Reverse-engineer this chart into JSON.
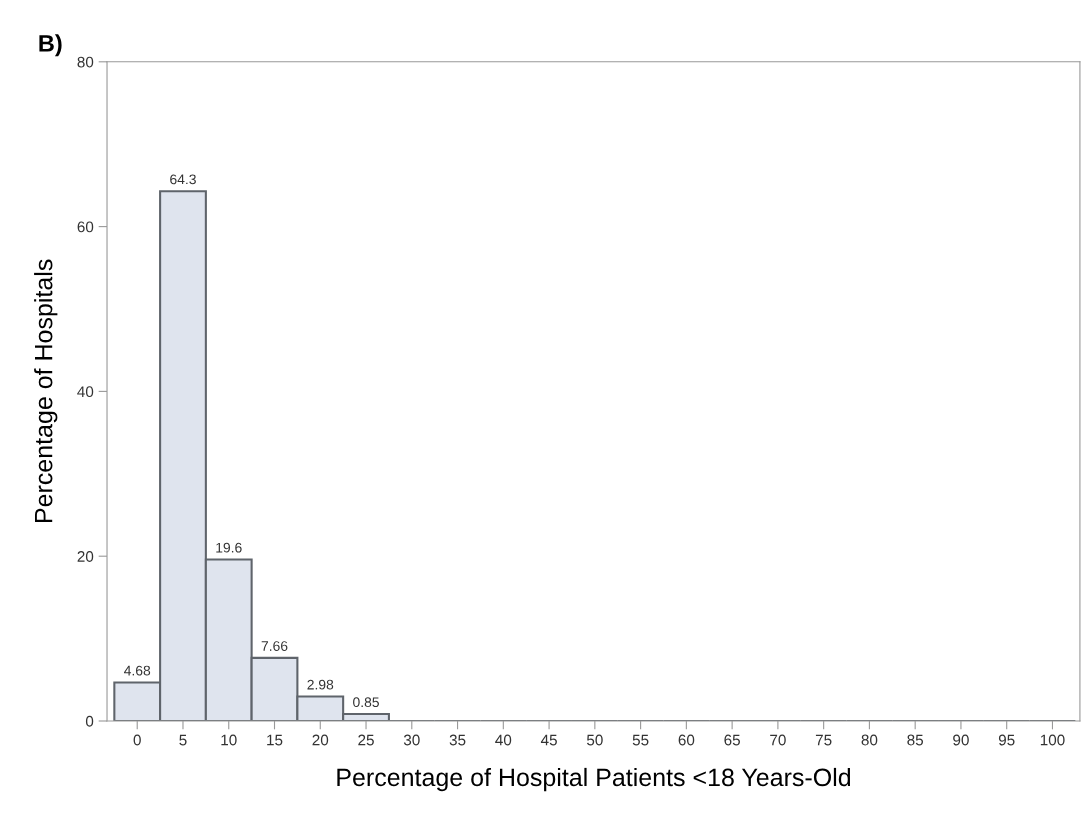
{
  "chart_data": {
    "type": "histogram",
    "xlabel": "Percentage of Hospital Patients <18 Years-Old",
    "ylabel": "Percentage of Hospitals",
    "annotations": [
      "B)"
    ],
    "bins": [
      -2.5,
      2.5,
      7.5,
      12.5,
      17.5,
      22.5,
      27.5,
      32.5,
      37.5,
      42.5,
      47.5,
      52.5,
      57.5,
      62.5,
      67.5,
      72.5,
      77.5,
      82.5,
      87.5,
      92.5,
      97.5,
      102.5
    ],
    "values": [
      4.68,
      64.3,
      19.6,
      7.66,
      2.98,
      0.85,
      0,
      0,
      0,
      0,
      0,
      0,
      0,
      0,
      0,
      0,
      0,
      0,
      0,
      0,
      0
    ],
    "value_labels": [
      "4.68",
      "64.3",
      "19.6",
      "7.66",
      "2.98",
      "0.85",
      null,
      null,
      null,
      null,
      null,
      null,
      null,
      null,
      null,
      null,
      null,
      null,
      null,
      null,
      null
    ],
    "color": "#dfe4ee",
    "xlim": [
      -3.3,
      103
    ],
    "xticks": [
      0,
      5,
      10,
      15,
      20,
      25,
      30,
      35,
      40,
      45,
      50,
      55,
      60,
      65,
      70,
      75,
      80,
      85,
      90,
      95,
      100
    ],
    "ylim": [
      0,
      80
    ],
    "yticks": [
      0,
      20,
      40,
      60,
      80
    ],
    "grid": false
  }
}
